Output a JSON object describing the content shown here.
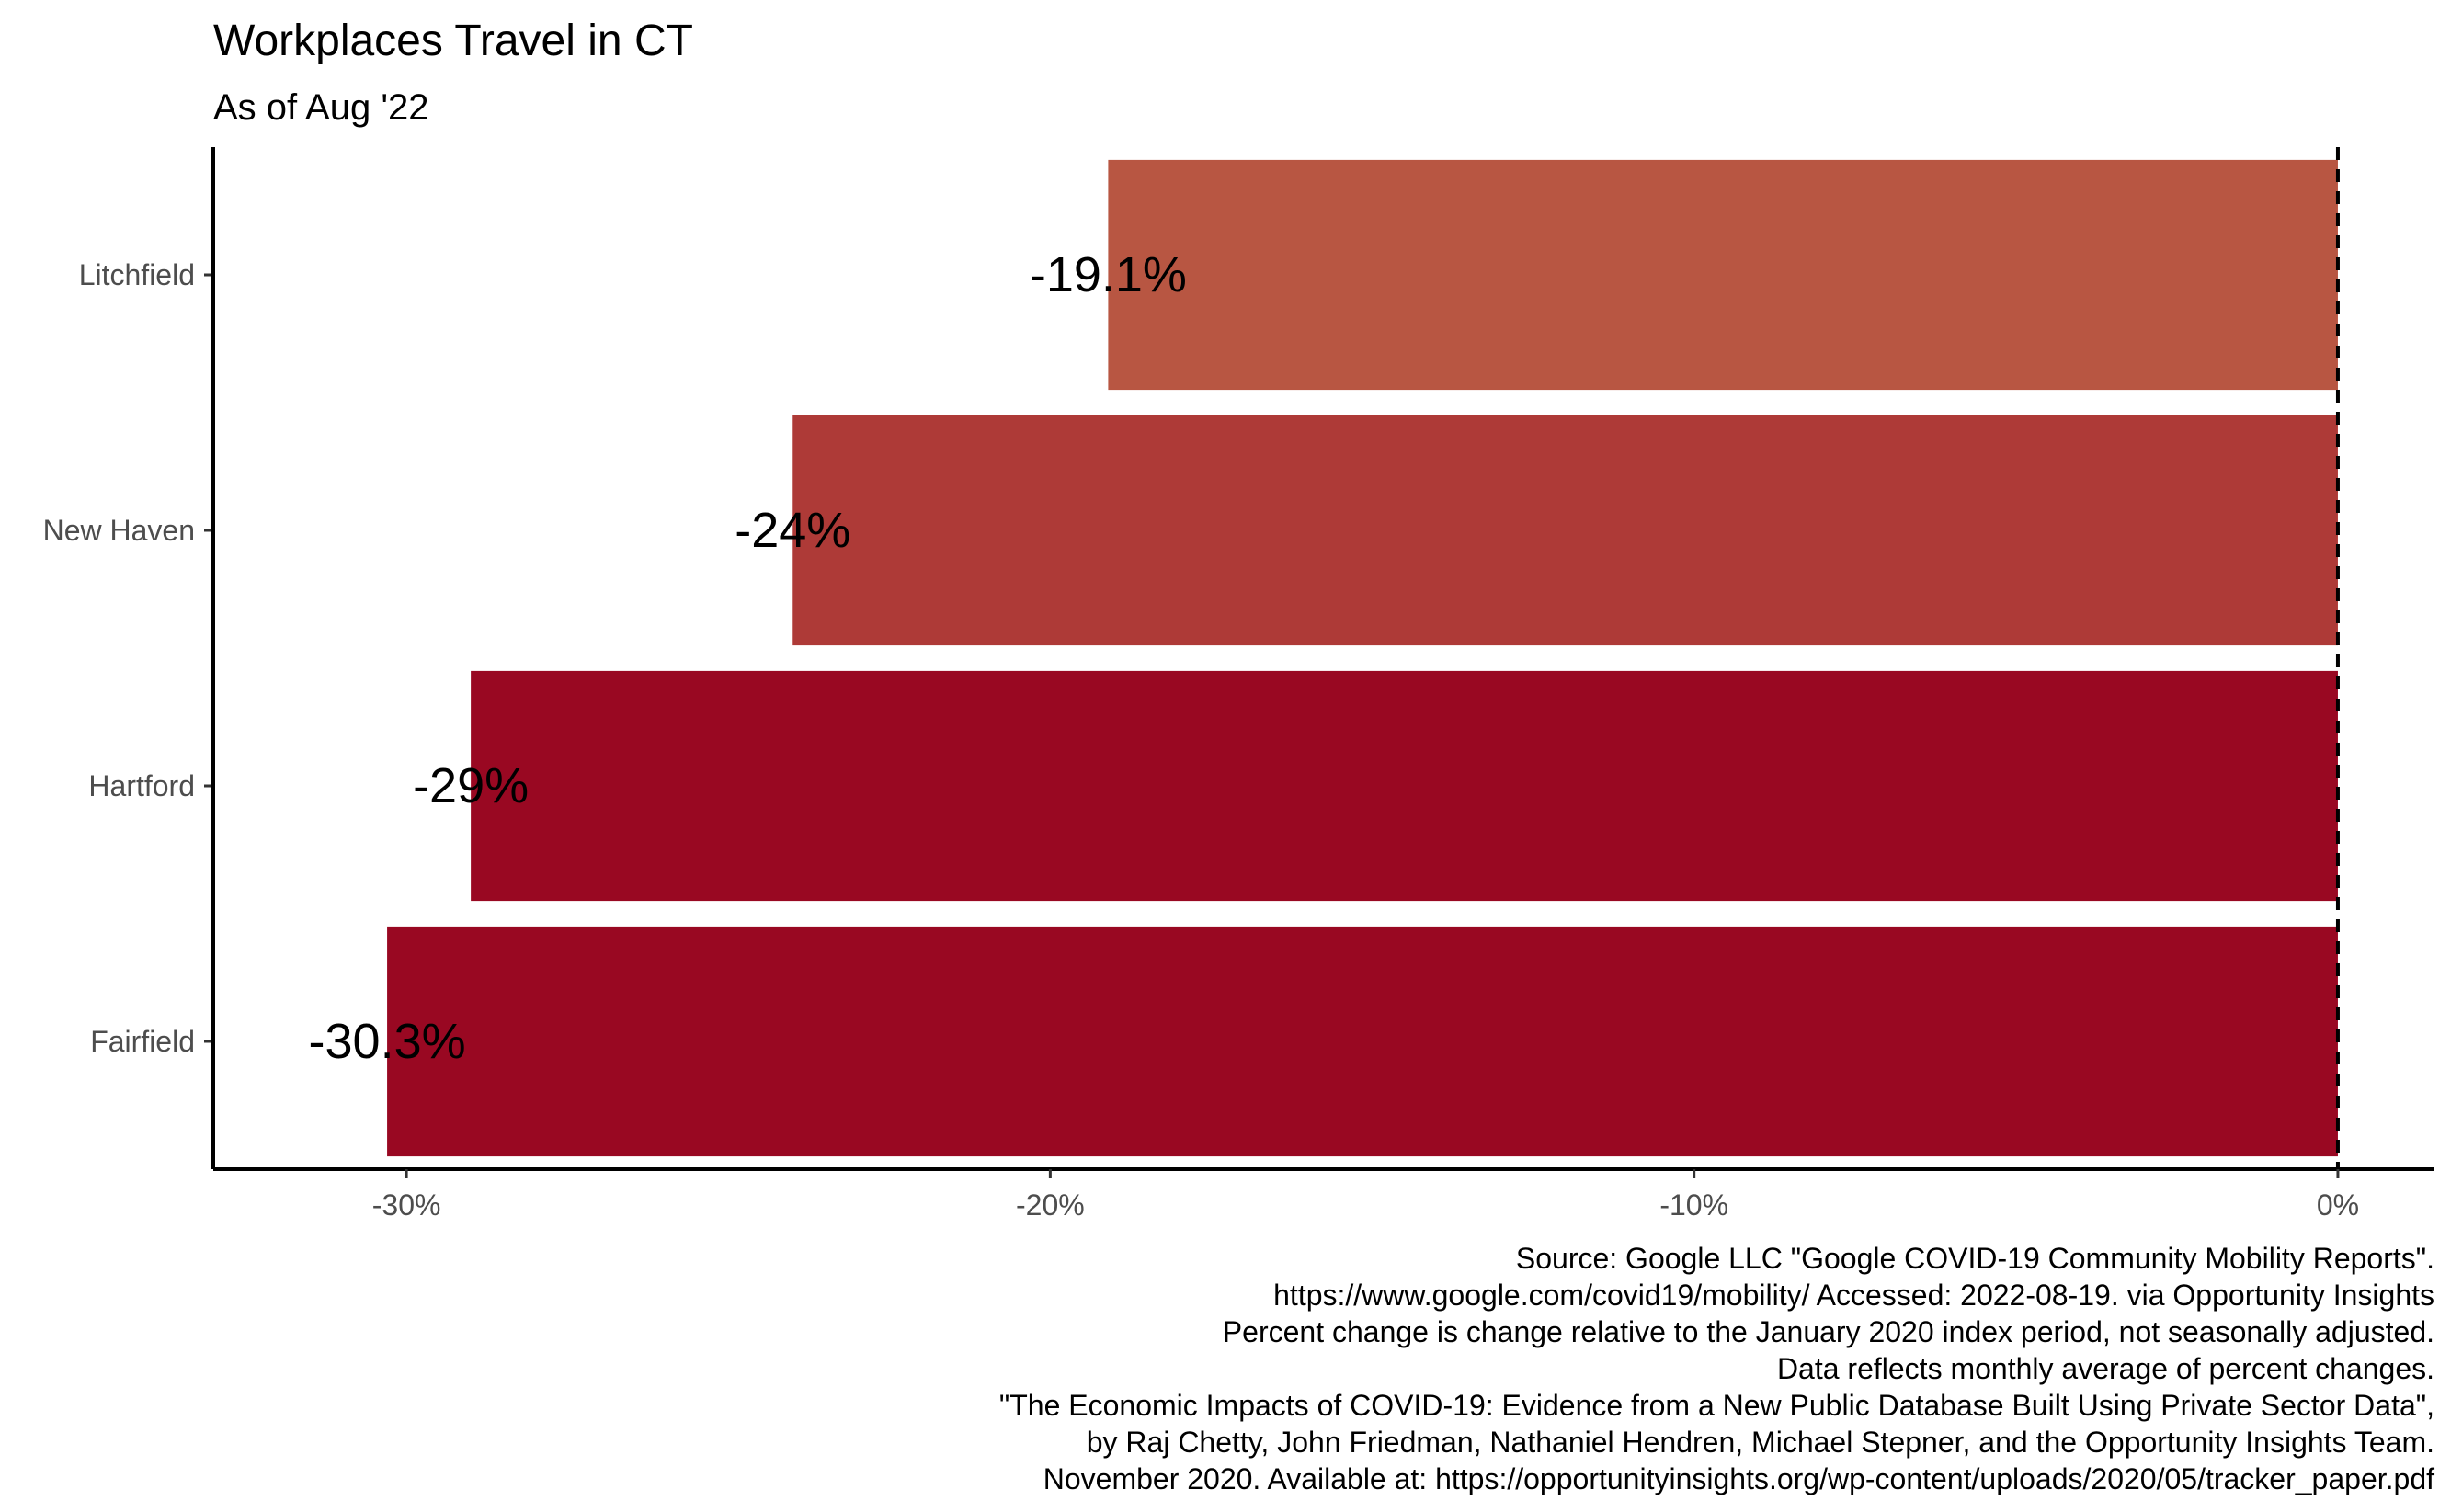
{
  "chart_data": {
    "type": "bar",
    "orientation": "horizontal",
    "title": "Workplaces Travel in CT",
    "subtitle": "As of Aug '22",
    "categories": [
      "Litchfield",
      "New Haven",
      "Hartford",
      "Fairfield"
    ],
    "values": [
      -19.1,
      -24,
      -29,
      -30.3
    ],
    "value_labels": [
      "-19.1%",
      "-24%",
      "-29%",
      "-30.3%"
    ],
    "colors": [
      "#b85642",
      "#ae3a37",
      "#990822",
      "#990822"
    ],
    "xlim": [
      -33,
      1.5
    ],
    "x_ticks": [
      -30,
      -20,
      -10,
      0
    ],
    "x_tick_labels": [
      "-30%",
      "-20%",
      "-10%",
      "0%"
    ],
    "reference_line": {
      "x": 0,
      "style": "dashed"
    },
    "xlabel": "",
    "ylabel": "",
    "grid": false,
    "legend": "none",
    "caption": [
      "Source: Google LLC \"Google COVID-19 Community Mobility Reports\".",
      "https://www.google.com/covid19/mobility/ Accessed: 2022-08-19. via Opportunity Insights",
      "Percent change is change relative to the January 2020 index period, not seasonally adjusted.",
      "Data reflects monthly average of percent changes.",
      "\"The Economic Impacts of COVID-19: Evidence from a New Public Database Built Using Private Sector Data\",",
      "by Raj Chetty, John Friedman, Nathaniel Hendren, Michael Stepner, and the Opportunity Insights Team.",
      "November 2020. Available at: https://opportunityinsights.org/wp-content/uploads/2020/05/tracker_paper.pdf"
    ]
  }
}
